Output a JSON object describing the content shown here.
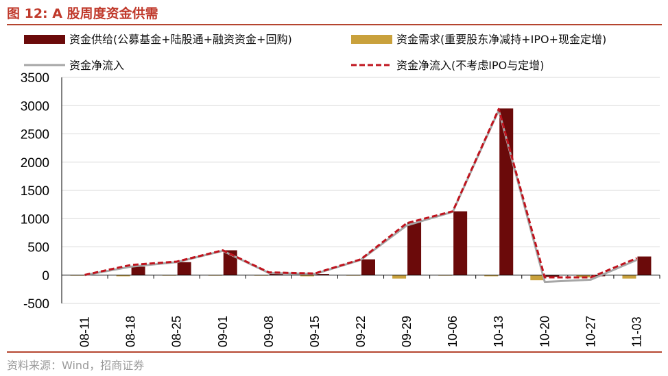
{
  "figure": {
    "title": "图 12:  A 股周度资金供需",
    "source": "资料来源：Wind，招商证券"
  },
  "colors": {
    "title": "#c0392b",
    "rule": "#b5452f",
    "supply_bar": "#6b0a0a",
    "demand_bar": "#c9a13c",
    "net_line": "#a6a6a6",
    "net_excl_line": "#c0141e",
    "grid": "#d9d9d9"
  },
  "chart_data": {
    "type": "bar",
    "categories": [
      "08-11",
      "08-18",
      "08-25",
      "09-01",
      "09-08",
      "09-15",
      "09-22",
      "09-29",
      "10-06",
      "10-13",
      "10-20",
      "10-27",
      "11-03"
    ],
    "ylim": [
      -500,
      3500
    ],
    "yticks": [
      -500,
      0,
      500,
      1000,
      1500,
      2000,
      2500,
      3000,
      3500
    ],
    "grid": true,
    "legend_position": "top",
    "series": [
      {
        "name": "资金供给(公募基金+陆股通+融资资金+回购)",
        "type": "bar",
        "values": [
          5,
          150,
          230,
          440,
          30,
          20,
          280,
          940,
          1130,
          2950,
          -30,
          -20,
          330
        ]
      },
      {
        "name": "资金需求(重要股东净减持+IPO+现金定增)",
        "type": "bar",
        "values": [
          -10,
          -20,
          -10,
          -10,
          -10,
          -20,
          -10,
          -60,
          -10,
          -20,
          -90,
          -40,
          -60
        ]
      },
      {
        "name": "资金净流入",
        "type": "line",
        "values": [
          0,
          150,
          230,
          430,
          40,
          20,
          270,
          880,
          1120,
          2920,
          -120,
          -80,
          270
        ]
      },
      {
        "name": "资金净流入(不考虑IPO与定增)",
        "type": "line",
        "values": [
          5,
          180,
          240,
          440,
          50,
          30,
          280,
          920,
          1130,
          2940,
          -40,
          -40,
          300
        ]
      }
    ]
  }
}
